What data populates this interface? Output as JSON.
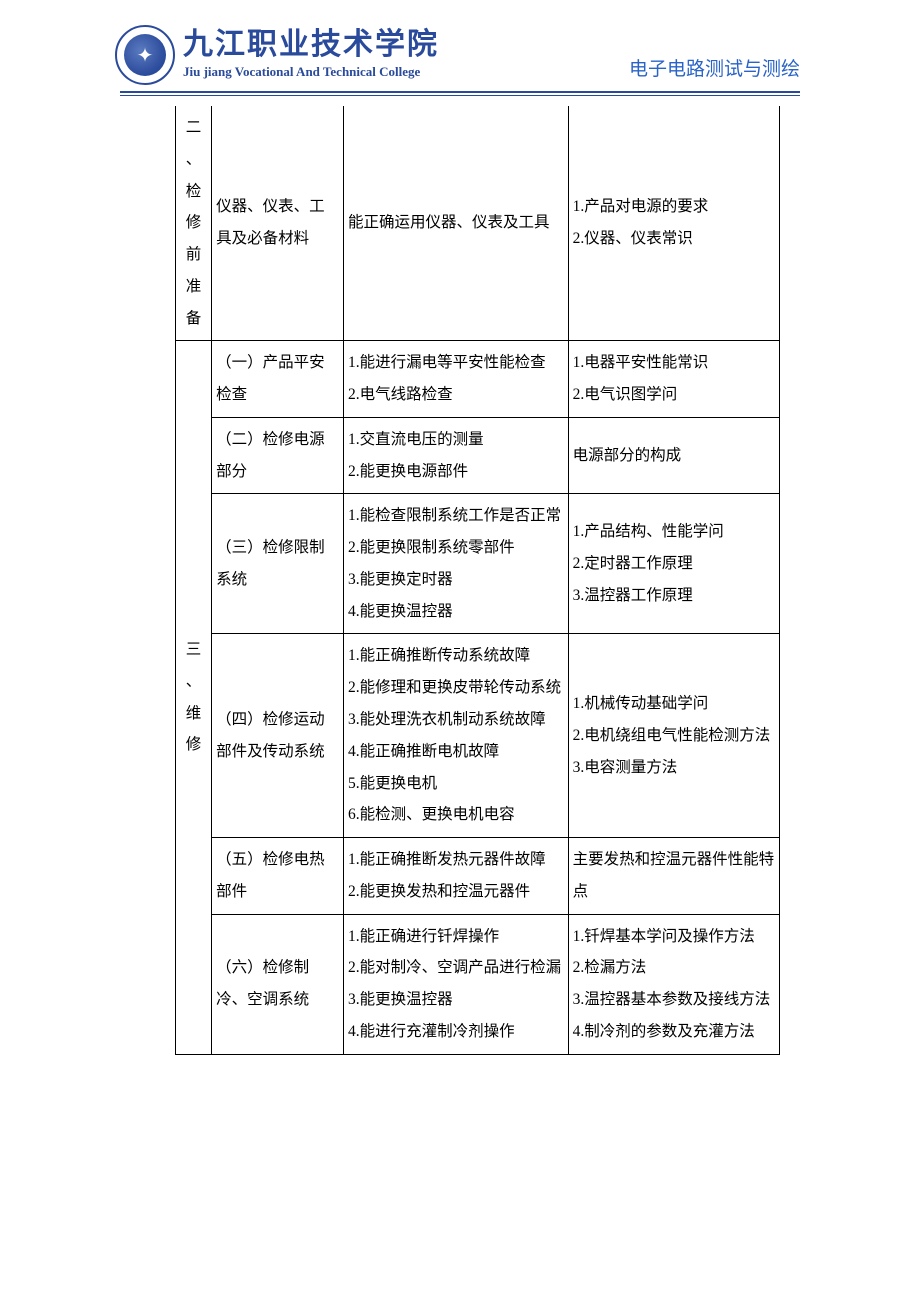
{
  "header": {
    "school_cn": "九江职业技术学院",
    "school_en": "Jiu jiang Vocational And Technical College",
    "course": "电子电路测试与测绘",
    "logo_glyph": "✦"
  },
  "table": {
    "row1": {
      "c1": "二、检修前准备",
      "c2": "仪器、仪表、工具及必备材料",
      "c3": "能正确运用仪器、仪表及工具",
      "c4": "1.产品对电源的要求\n2.仪器、仪表常识"
    },
    "group2_label": "三、维修",
    "rows2": [
      {
        "c2": "（一）产品平安检查",
        "c3": "1.能进行漏电等平安性能检查\n2.电气线路检查",
        "c4": "1.电器平安性能常识\n2.电气识图学问"
      },
      {
        "c2": "（二）检修电源部分",
        "c3": "1.交直流电压的测量\n2.能更换电源部件",
        "c4": "电源部分的构成"
      },
      {
        "c2": "（三）检修限制系统",
        "c3": "1.能检查限制系统工作是否正常\n2.能更换限制系统零部件\n3.能更换定时器\n4.能更换温控器",
        "c4": "1.产品结构、性能学问\n2.定时器工作原理\n3.温控器工作原理"
      },
      {
        "c2": "（四）检修运动部件及传动系统",
        "c3": "1.能正确推断传动系统故障\n2.能修理和更换皮带轮传动系统\n3.能处理洗衣机制动系统故障\n4.能正确推断电机故障\n5.能更换电机\n6.能检测、更换电机电容",
        "c4": "1.机械传动基础学问\n2.电机绕组电气性能检测方法\n3.电容测量方法"
      },
      {
        "c2": "（五）检修电热部件",
        "c3": "1.能正确推断发热元器件故障\n2.能更换发热和控温元器件",
        "c4": "主要发热和控温元器件性能特点"
      },
      {
        "c2": "（六）检修制冷、空调系统",
        "c3": "1.能正确进行钎焊操作\n2.能对制冷、空调产品进行检漏\n3.能更换温控器\n4.能进行充灌制冷剂操作",
        "c4": "1.钎焊基本学问及操作方法\n2.检漏方法\n3.温控器基本参数及接线方法\n4.制冷剂的参数及充灌方法"
      }
    ]
  }
}
